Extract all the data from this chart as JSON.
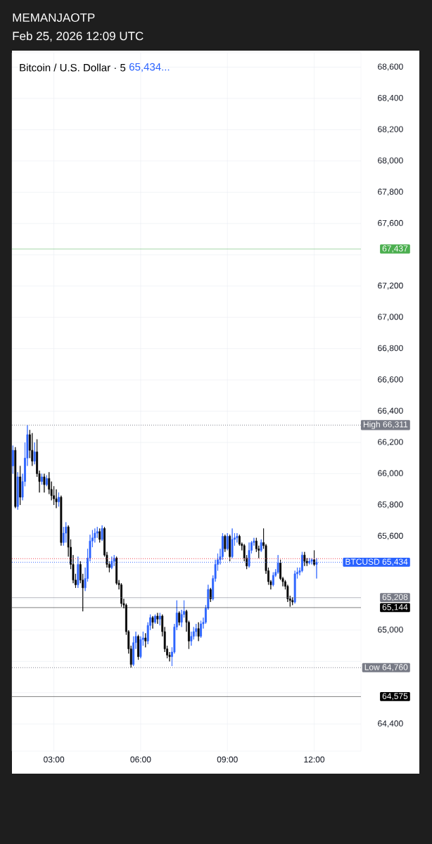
{
  "chart_data": {
    "type": "candlestick",
    "title": "MEMANJAOTP",
    "subtitle": "Feb 25, 2026 12:09 UTC",
    "annotations": [
      "Bitcoin / U.S. Dollar · 5",
      "65,434..."
    ],
    "x": [
      "2026-02-25T01:35",
      "2026-02-25T01:40",
      "2026-02-25T01:45",
      "2026-02-25T01:50",
      "2026-02-25T01:55",
      "2026-02-25T02:00",
      "2026-02-25T02:05",
      "2026-02-25T02:10",
      "2026-02-25T02:15",
      "2026-02-25T02:20",
      "2026-02-25T02:25",
      "2026-02-25T02:30",
      "2026-02-25T02:35",
      "2026-02-25T02:40",
      "2026-02-25T02:45",
      "2026-02-25T02:50",
      "2026-02-25T02:55",
      "2026-02-25T03:00",
      "2026-02-25T03:05",
      "2026-02-25T03:10",
      "2026-02-25T03:15",
      "2026-02-25T03:20",
      "2026-02-25T03:25",
      "2026-02-25T03:30",
      "2026-02-25T03:35",
      "2026-02-25T03:40",
      "2026-02-25T03:45",
      "2026-02-25T03:50",
      "2026-02-25T03:55",
      "2026-02-25T04:00",
      "2026-02-25T04:05",
      "2026-02-25T04:10",
      "2026-02-25T04:15",
      "2026-02-25T04:20",
      "2026-02-25T04:25",
      "2026-02-25T04:30",
      "2026-02-25T04:35",
      "2026-02-25T04:40",
      "2026-02-25T04:45",
      "2026-02-25T04:50",
      "2026-02-25T04:55",
      "2026-02-25T05:00",
      "2026-02-25T05:05",
      "2026-02-25T05:10",
      "2026-02-25T05:15",
      "2026-02-25T05:20",
      "2026-02-25T05:25",
      "2026-02-25T05:30",
      "2026-02-25T05:35",
      "2026-02-25T05:40",
      "2026-02-25T05:45",
      "2026-02-25T05:50",
      "2026-02-25T05:55",
      "2026-02-25T06:00",
      "2026-02-25T06:05",
      "2026-02-25T06:10",
      "2026-02-25T06:15",
      "2026-02-25T06:20",
      "2026-02-25T06:25",
      "2026-02-25T06:30",
      "2026-02-25T06:35",
      "2026-02-25T06:40",
      "2026-02-25T06:45",
      "2026-02-25T06:50",
      "2026-02-25T06:55",
      "2026-02-25T07:00",
      "2026-02-25T07:05",
      "2026-02-25T07:10",
      "2026-02-25T07:15",
      "2026-02-25T07:20",
      "2026-02-25T07:25",
      "2026-02-25T07:30",
      "2026-02-25T07:35",
      "2026-02-25T07:40",
      "2026-02-25T07:45",
      "2026-02-25T07:50",
      "2026-02-25T07:55",
      "2026-02-25T08:00",
      "2026-02-25T08:05",
      "2026-02-25T08:10",
      "2026-02-25T08:15",
      "2026-02-25T08:20",
      "2026-02-25T08:25",
      "2026-02-25T08:30",
      "2026-02-25T08:35",
      "2026-02-25T08:40",
      "2026-02-25T08:45",
      "2026-02-25T08:50",
      "2026-02-25T08:55",
      "2026-02-25T09:00",
      "2026-02-25T09:05",
      "2026-02-25T09:10",
      "2026-02-25T09:15",
      "2026-02-25T09:20",
      "2026-02-25T09:25",
      "2026-02-25T09:30",
      "2026-02-25T09:35",
      "2026-02-25T09:40",
      "2026-02-25T09:45",
      "2026-02-25T09:50",
      "2026-02-25T09:55",
      "2026-02-25T10:00",
      "2026-02-25T10:05",
      "2026-02-25T10:10",
      "2026-02-25T10:15",
      "2026-02-25T10:20",
      "2026-02-25T10:25",
      "2026-02-25T10:30",
      "2026-02-25T10:35",
      "2026-02-25T10:40",
      "2026-02-25T10:45",
      "2026-02-25T10:50",
      "2026-02-25T10:55",
      "2026-02-25T11:00",
      "2026-02-25T11:05",
      "2026-02-25T11:10",
      "2026-02-25T11:15",
      "2026-02-25T11:20",
      "2026-02-25T11:25",
      "2026-02-25T11:30",
      "2026-02-25T11:35",
      "2026-02-25T11:40",
      "2026-02-25T11:45",
      "2026-02-25T11:50",
      "2026-02-25T11:55",
      "2026-02-25T12:00",
      "2026-02-25T12:05"
    ],
    "ohlc": [
      [
        66050,
        66180,
        66000,
        66150
      ],
      [
        66150,
        66170,
        65780,
        65790
      ],
      [
        65790,
        66010,
        65770,
        65980
      ],
      [
        65980,
        66050,
        65800,
        65850
      ],
      [
        65850,
        66000,
        65830,
        65950
      ],
      [
        65950,
        66200,
        65920,
        66100
      ],
      [
        66100,
        66311,
        66050,
        66250
      ],
      [
        66250,
        66280,
        66100,
        66150
      ],
      [
        66150,
        66260,
        66050,
        66080
      ],
      [
        66080,
        66200,
        66060,
        66140
      ],
      [
        66140,
        66220,
        65980,
        66000
      ],
      [
        66000,
        66020,
        65880,
        65950
      ],
      [
        65950,
        66000,
        65930,
        65980
      ],
      [
        65980,
        66000,
        65880,
        65930
      ],
      [
        65930,
        65990,
        65920,
        65970
      ],
      [
        65970,
        66010,
        65870,
        65900
      ],
      [
        65900,
        65950,
        65830,
        65860
      ],
      [
        65860,
        65920,
        65800,
        65840
      ],
      [
        65840,
        65900,
        65780,
        65820
      ],
      [
        65820,
        65880,
        65790,
        65850
      ],
      [
        65850,
        65860,
        65540,
        65560
      ],
      [
        65560,
        65660,
        65540,
        65620
      ],
      [
        65620,
        65690,
        65560,
        65660
      ],
      [
        65660,
        65670,
        65470,
        65530
      ],
      [
        65530,
        65580,
        65390,
        65420
      ],
      [
        65420,
        65480,
        65300,
        65320
      ],
      [
        65320,
        65360,
        65270,
        65290
      ],
      [
        65290,
        65470,
        65270,
        65420
      ],
      [
        65420,
        65440,
        65300,
        65320
      ],
      [
        65320,
        65360,
        65120,
        65270
      ],
      [
        65270,
        65400,
        65250,
        65330
      ],
      [
        65330,
        65520,
        65310,
        65460
      ],
      [
        65460,
        65610,
        65440,
        65570
      ],
      [
        65570,
        65640,
        65530,
        65590
      ],
      [
        65590,
        65650,
        65560,
        65620
      ],
      [
        65620,
        65660,
        65590,
        65630
      ],
      [
        65630,
        65650,
        65560,
        65580
      ],
      [
        65580,
        65670,
        65570,
        65650
      ],
      [
        65650,
        65660,
        65470,
        65480
      ],
      [
        65480,
        65500,
        65400,
        65420
      ],
      [
        65420,
        65440,
        65370,
        65400
      ],
      [
        65400,
        65470,
        65390,
        65440
      ],
      [
        65440,
        65480,
        65410,
        65460
      ],
      [
        65460,
        65470,
        65290,
        65300
      ],
      [
        65300,
        65320,
        65260,
        65290
      ],
      [
        65290,
        65300,
        65150,
        65170
      ],
      [
        65170,
        65200,
        65140,
        65160
      ],
      [
        65160,
        65170,
        64970,
        64990
      ],
      [
        64990,
        65000,
        64850,
        64880
      ],
      [
        64880,
        64900,
        64760,
        64780
      ],
      [
        64780,
        64960,
        64770,
        64920
      ],
      [
        64920,
        64990,
        64880,
        64960
      ],
      [
        64960,
        64970,
        64810,
        64830
      ],
      [
        64830,
        64960,
        64820,
        64940
      ],
      [
        64940,
        64990,
        64900,
        64950
      ],
      [
        64950,
        64980,
        64890,
        64930
      ],
      [
        64930,
        65050,
        64910,
        65030
      ],
      [
        65030,
        65100,
        65000,
        65080
      ],
      [
        65080,
        65090,
        65010,
        65050
      ],
      [
        65050,
        65100,
        65040,
        65090
      ],
      [
        65090,
        65110,
        65040,
        65070
      ],
      [
        65070,
        65110,
        65030,
        65090
      ],
      [
        65090,
        65100,
        64960,
        64990
      ],
      [
        64990,
        65020,
        64860,
        64880
      ],
      [
        64880,
        64900,
        64820,
        64840
      ],
      [
        64840,
        64860,
        64800,
        64830
      ],
      [
        64830,
        64890,
        64770,
        64860
      ],
      [
        64860,
        65040,
        64850,
        65020
      ],
      [
        65020,
        65190,
        65000,
        65110
      ],
      [
        65110,
        65120,
        65030,
        65050
      ],
      [
        65050,
        65130,
        65020,
        65100
      ],
      [
        65100,
        65190,
        65080,
        65120
      ],
      [
        65120,
        65130,
        64990,
        65050
      ],
      [
        65050,
        65060,
        64880,
        64930
      ],
      [
        64930,
        64990,
        64900,
        64960
      ],
      [
        64960,
        65020,
        64940,
        64990
      ],
      [
        64990,
        65040,
        64960,
        65010
      ],
      [
        65010,
        65050,
        64930,
        64960
      ],
      [
        64960,
        65060,
        64950,
        65040
      ],
      [
        65040,
        65080,
        65010,
        65050
      ],
      [
        65050,
        65160,
        65040,
        65140
      ],
      [
        65140,
        65290,
        65130,
        65260
      ],
      [
        65260,
        65270,
        65180,
        65200
      ],
      [
        65200,
        65350,
        65190,
        65330
      ],
      [
        65330,
        65450,
        65310,
        65420
      ],
      [
        65420,
        65490,
        65380,
        65450
      ],
      [
        65450,
        65520,
        65420,
        65470
      ],
      [
        65470,
        65620,
        65450,
        65600
      ],
      [
        65600,
        65610,
        65500,
        65520
      ],
      [
        65520,
        65620,
        65510,
        65600
      ],
      [
        65600,
        65610,
        65440,
        65470
      ],
      [
        65470,
        65650,
        65460,
        65580
      ],
      [
        65580,
        65620,
        65540,
        65590
      ],
      [
        65590,
        65620,
        65560,
        65600
      ],
      [
        65600,
        65610,
        65540,
        65550
      ],
      [
        65550,
        65560,
        65510,
        65540
      ],
      [
        65540,
        65550,
        65440,
        65460
      ],
      [
        65460,
        65480,
        65390,
        65410
      ],
      [
        65410,
        65560,
        65400,
        65510
      ],
      [
        65510,
        65570,
        65490,
        65560
      ],
      [
        65560,
        65590,
        65540,
        65570
      ],
      [
        65570,
        65590,
        65500,
        65520
      ],
      [
        65520,
        65540,
        65460,
        65510
      ],
      [
        65510,
        65580,
        65500,
        65560
      ],
      [
        65560,
        65650,
        65520,
        65540
      ],
      [
        65540,
        65550,
        65360,
        65380
      ],
      [
        65380,
        65400,
        65290,
        65310
      ],
      [
        65310,
        65320,
        65260,
        65290
      ],
      [
        65290,
        65370,
        65280,
        65350
      ],
      [
        65350,
        65390,
        65340,
        65370
      ],
      [
        65370,
        65480,
        65360,
        65430
      ],
      [
        65430,
        65450,
        65320,
        65330
      ],
      [
        65330,
        65340,
        65280,
        65310
      ],
      [
        65310,
        65320,
        65260,
        65280
      ],
      [
        65280,
        65290,
        65180,
        65200
      ],
      [
        65200,
        65220,
        65150,
        65190
      ],
      [
        65190,
        65210,
        65160,
        65180
      ],
      [
        65180,
        65380,
        65170,
        65360
      ],
      [
        65360,
        65400,
        65330,
        65370
      ],
      [
        65370,
        65400,
        65350,
        65380
      ],
      [
        65380,
        65500,
        65370,
        65480
      ],
      [
        65480,
        65500,
        65410,
        65440
      ],
      [
        65440,
        65460,
        65410,
        65430
      ],
      [
        65430,
        65460,
        65420,
        65440
      ],
      [
        65440,
        65460,
        65420,
        65450
      ],
      [
        65450,
        65510,
        65410,
        65420
      ],
      [
        65420,
        65460,
        65330,
        65434
      ]
    ],
    "colors": [
      "#2962ff",
      "#000000",
      "#2962ff",
      "#000000",
      "#2962ff",
      "#2962ff",
      "#2962ff",
      "#000000",
      "#000000",
      "#2962ff",
      "#000000",
      "#000000",
      "#2962ff",
      "#000000",
      "#2962ff",
      "#000000",
      "#000000",
      "#000000",
      "#000000",
      "#2962ff",
      "#000000",
      "#2962ff",
      "#2962ff",
      "#000000",
      "#000000",
      "#000000",
      "#000000",
      "#2962ff",
      "#000000",
      "#000000",
      "#2962ff",
      "#2962ff",
      "#2962ff",
      "#2962ff",
      "#2962ff",
      "#2962ff",
      "#000000",
      "#2962ff",
      "#000000",
      "#000000",
      "#000000",
      "#2962ff",
      "#2962ff",
      "#000000",
      "#000000",
      "#000000",
      "#000000",
      "#000000",
      "#000000",
      "#000000",
      "#2962ff",
      "#2962ff",
      "#000000",
      "#2962ff",
      "#2962ff",
      "#000000",
      "#2962ff",
      "#2962ff",
      "#000000",
      "#2962ff",
      "#000000",
      "#2962ff",
      "#000000",
      "#000000",
      "#000000",
      "#000000",
      "#2962ff",
      "#2962ff",
      "#2962ff",
      "#000000",
      "#2962ff",
      "#2962ff",
      "#000000",
      "#000000",
      "#2962ff",
      "#2962ff",
      "#2962ff",
      "#000000",
      "#2962ff",
      "#2962ff",
      "#2962ff",
      "#2962ff",
      "#000000",
      "#2962ff",
      "#2962ff",
      "#2962ff",
      "#2962ff",
      "#2962ff",
      "#000000",
      "#2962ff",
      "#000000",
      "#2962ff",
      "#2962ff",
      "#2962ff",
      "#000000",
      "#000000",
      "#000000",
      "#000000",
      "#2962ff",
      "#2962ff",
      "#2962ff",
      "#000000",
      "#000000",
      "#2962ff",
      "#000000",
      "#000000",
      "#000000",
      "#000000",
      "#2962ff",
      "#2962ff",
      "#2962ff",
      "#000000",
      "#000000",
      "#000000",
      "#000000",
      "#000000",
      "#000000",
      "#2962ff",
      "#2962ff",
      "#2962ff",
      "#2962ff",
      "#000000",
      "#000000",
      "#2962ff",
      "#2962ff",
      "#000000",
      "#2962ff"
    ],
    "xlim": [
      "2026-02-25T01:33",
      "2026-02-25T13:37"
    ],
    "ylim": [
      64226,
      68692
    ],
    "xticks": [
      {
        "value": "2026-02-25T03:00",
        "label": "03:00"
      },
      {
        "value": "2026-02-25T06:00",
        "label": "06:00"
      },
      {
        "value": "2026-02-25T09:00",
        "label": "09:00"
      },
      {
        "value": "2026-02-25T12:00",
        "label": "12:00"
      }
    ],
    "yticks": [
      {
        "value": 64400,
        "label": "64,400"
      },
      {
        "value": 64600,
        "label": null
      },
      {
        "value": 64800,
        "label": null
      },
      {
        "value": 65000,
        "label": "65,000"
      },
      {
        "value": 65200,
        "label": null
      },
      {
        "value": 65400,
        "label": null
      },
      {
        "value": 65600,
        "label": "65,600"
      },
      {
        "value": 65800,
        "label": "65,800"
      },
      {
        "value": 66000,
        "label": "66,000"
      },
      {
        "value": 66200,
        "label": "66,200"
      },
      {
        "value": 66400,
        "label": "66,400"
      },
      {
        "value": 66600,
        "label": "66,600"
      },
      {
        "value": 66800,
        "label": "66,800"
      },
      {
        "value": 67000,
        "label": "67,000"
      },
      {
        "value": 67200,
        "label": "67,200"
      },
      {
        "value": 67400,
        "label": null
      },
      {
        "value": 67600,
        "label": "67,600"
      },
      {
        "value": 67800,
        "label": "67,800"
      },
      {
        "value": 68000,
        "label": "68,000"
      },
      {
        "value": 68200,
        "label": "68,200"
      },
      {
        "value": 68400,
        "label": "68,400"
      },
      {
        "value": 68600,
        "label": "68,600"
      }
    ],
    "grid": true,
    "ref_lines": [
      {
        "axis": "y",
        "value": 66311,
        "label": "High 66,311",
        "color": "#787b86",
        "line_style": "dotted"
      },
      {
        "axis": "y",
        "value": 64760,
        "label": "Low 64,760",
        "color": "#787b86",
        "line_style": "dotted"
      },
      {
        "axis": "y",
        "value": 65457,
        "color": "#f23645",
        "line_style": "dotted"
      },
      {
        "axis": "y",
        "value": 65434,
        "label": "BTCUSD 65,434",
        "color": "#2962ff",
        "line_style": "dotted"
      },
      {
        "axis": "y",
        "value": 67437,
        "label": "67,437",
        "color": "#4caf50",
        "line_style": "solid"
      },
      {
        "axis": "y",
        "value": 65208,
        "label": "65,208",
        "color": "#787b86",
        "line_style": "solid"
      },
      {
        "axis": "y",
        "value": 65144,
        "label": "65,144",
        "color": "#000000",
        "line_style": "solid"
      },
      {
        "axis": "y",
        "value": 64575,
        "label": "64,575",
        "color": "#000000",
        "line_style": "solid"
      }
    ]
  }
}
